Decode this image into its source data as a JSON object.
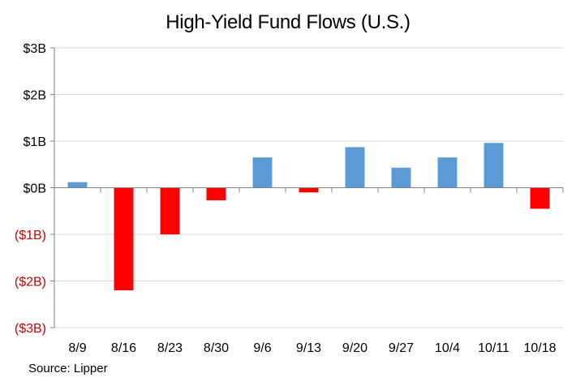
{
  "chart_data": {
    "type": "bar",
    "title": "High-Yield  Fund Flows (U.S.)",
    "source": "Source: Lipper",
    "categories": [
      "8/9",
      "8/16",
      "8/23",
      "8/30",
      "9/6",
      "9/13",
      "9/20",
      "9/27",
      "10/4",
      "10/11",
      "10/18"
    ],
    "values": [
      0.12,
      -2.2,
      -1.0,
      -0.27,
      0.65,
      -0.1,
      0.87,
      0.43,
      0.65,
      0.96,
      -0.45
    ],
    "ylim": [
      -3,
      3
    ],
    "yticks": [
      3,
      2,
      1,
      0,
      -1,
      -2,
      -3
    ],
    "ytick_labels": [
      "$3B",
      "$2B",
      "$1B",
      "$0B",
      "($1B)",
      "($2B)",
      "($3B)"
    ],
    "xlabel": "",
    "ylabel": "",
    "grid": true,
    "colors": {
      "positive": "#5b9bd5",
      "negative": "#ff0000",
      "negative_label": "#cc0000",
      "grid": "#d9d9d9",
      "axis": "#808080"
    }
  }
}
